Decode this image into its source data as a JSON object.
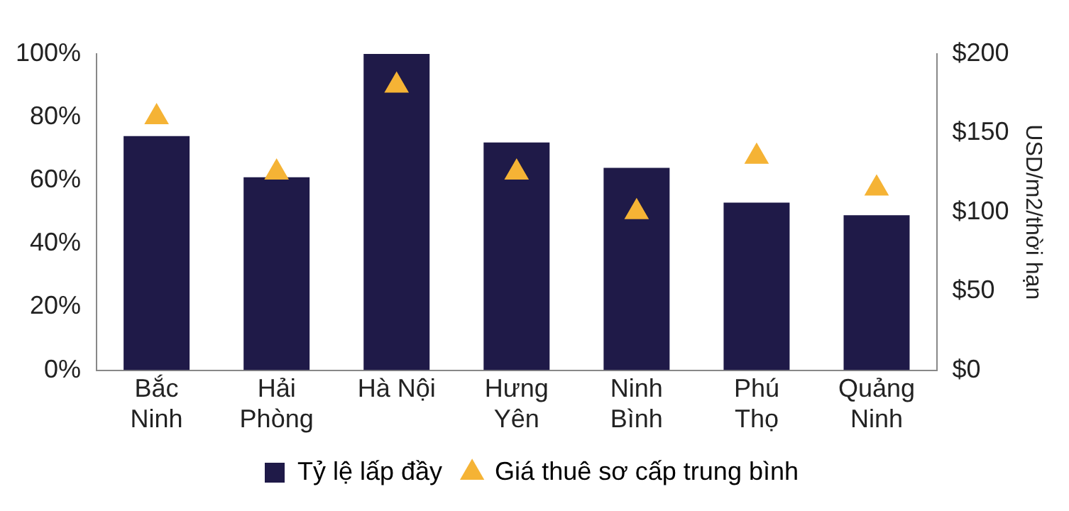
{
  "chart_data": {
    "type": "bar",
    "categories": [
      "Bắc\nNinh",
      "Hải\nPhòng",
      "Hà Nội",
      "Hưng\nYên",
      "Ninh\nBình",
      "Phú\nThọ",
      "Quảng\nNinh"
    ],
    "series": [
      {
        "name": "Tỷ lệ lấp đầy",
        "color": "#1f1a48",
        "values": [
          74,
          61,
          100,
          72,
          64,
          53,
          49
        ]
      },
      {
        "name": "Giá thuê sơ cấp trung bình",
        "type": "scatter",
        "axis": "y2",
        "color": "#f5b335",
        "values": [
          160,
          125,
          180,
          125,
          100,
          135,
          115
        ]
      }
    ],
    "ylim": [
      0,
      100
    ],
    "yticks": [
      {
        "value": 0,
        "label": "0%"
      },
      {
        "value": 20,
        "label": "20%"
      },
      {
        "value": 40,
        "label": "40%"
      },
      {
        "value": 60,
        "label": "60%"
      },
      {
        "value": 80,
        "label": "80%"
      },
      {
        "value": 100,
        "label": "100%"
      }
    ],
    "y2lim": [
      0,
      200
    ],
    "y2ticks": [
      {
        "value": 0,
        "label": "$0"
      },
      {
        "value": 50,
        "label": "$50"
      },
      {
        "value": 100,
        "label": "$100"
      },
      {
        "value": 150,
        "label": "$150"
      },
      {
        "value": 200,
        "label": "$200"
      }
    ],
    "y2label": "USD/m2/thời hạn",
    "legend": "bottom",
    "grid": false,
    "marker": "triangle"
  }
}
